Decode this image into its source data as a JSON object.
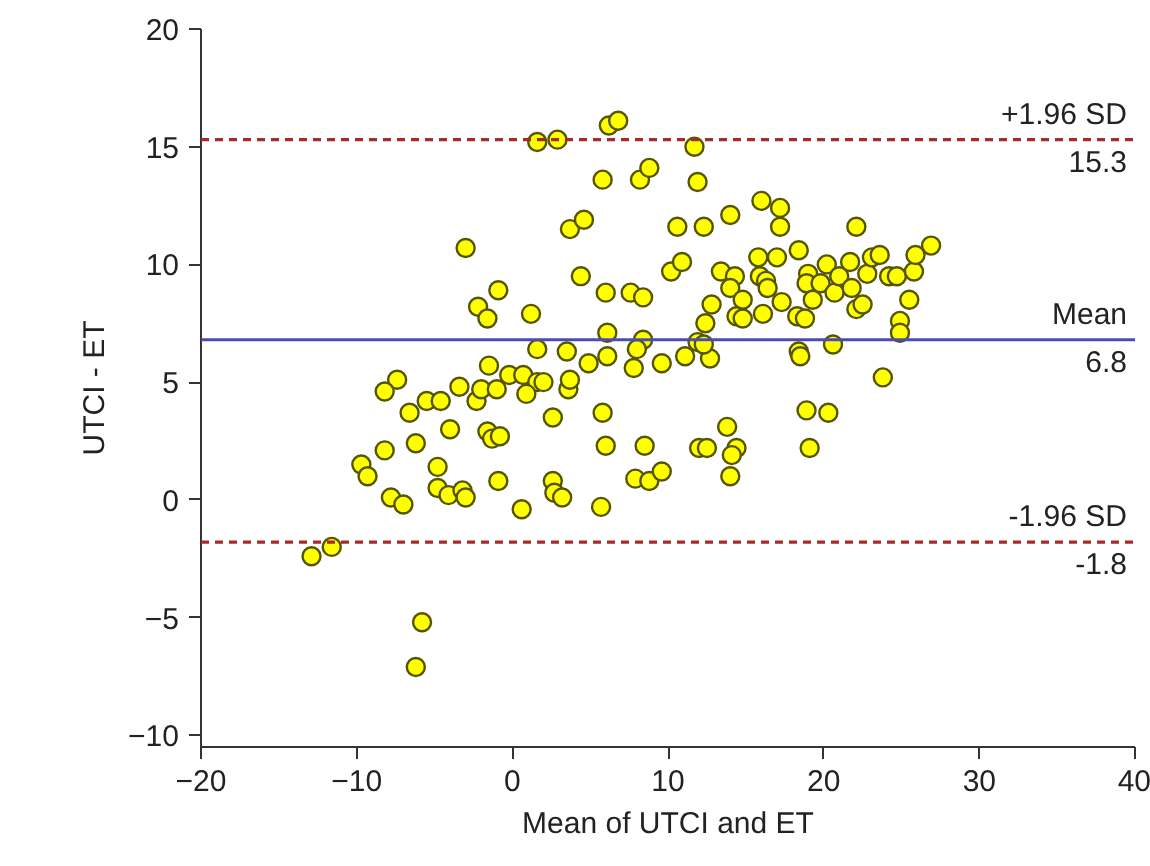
{
  "chart_data": {
    "type": "scatter",
    "xlabel": "Mean of UTCI and ET",
    "ylabel": "UTCI - ET",
    "xlim": [
      -20,
      40
    ],
    "xticks": [
      -20,
      -10,
      0,
      10,
      20,
      30,
      40
    ],
    "ylim": [
      -10.5,
      20
    ],
    "yticks": [
      -10,
      -5,
      0,
      5,
      10,
      15,
      20
    ],
    "marker": "circle",
    "series": [
      {
        "color": "#ffff00",
        "x": [
          1.6,
          2.9,
          6.2,
          6.8,
          5.8,
          8.2,
          8.8,
          -3.0,
          3.7,
          4.6,
          4.4,
          -0.9,
          -2.2,
          -1.6,
          1.2,
          6.0,
          7.6,
          8.4,
          10.2,
          6.1,
          8.4,
          1.6,
          3.5,
          -1.5,
          4.9,
          6.1,
          8.0,
          9.6,
          10.6,
          11.7,
          11.9,
          12.3,
          14.0,
          16.0,
          17.2,
          17.2,
          22.1,
          10.9,
          13.4,
          14.3,
          15.8,
          17.0,
          18.4,
          15.9,
          16.3,
          16.4,
          14.0,
          14.8,
          12.8,
          12.4,
          14.4,
          14.8,
          16.1,
          17.3,
          18.3,
          18.8,
          19.0,
          18.9,
          19.3,
          19.8,
          20.2,
          20.7,
          21.0,
          21.7,
          21.8,
          22.1,
          22.5,
          22.8,
          23.1,
          23.6,
          24.2,
          24.7,
          25.5,
          25.8,
          25.9,
          26.9,
          24.9,
          24.9,
          11.9,
          20.6,
          18.4,
          18.5,
          11.1,
          12.7,
          12.3,
          -0.2,
          0.7,
          1.6,
          2.0,
          7.8,
          -7.4,
          -8.2,
          -6.6,
          -5.5,
          -4.6,
          -3.4,
          -2.3,
          -2.0,
          -1.0,
          0.9,
          3.6,
          3.7,
          2.6,
          5.8,
          -4.0,
          -1.6,
          -1.3,
          -0.8,
          -6.2,
          -8.2,
          6.0,
          8.5,
          -9.7,
          -9.3,
          -4.8,
          -4.8,
          -4.1,
          -3.2,
          -3.0,
          -0.9,
          2.6,
          2.7,
          3.2,
          7.9,
          8.8,
          9.6,
          -7.8,
          -7.0,
          0.6,
          5.7,
          -12.9,
          -11.6,
          -5.8,
          -6.2,
          23.8,
          18.9,
          20.3,
          13.8,
          12.0,
          12.5,
          14.4,
          14.1,
          14.0,
          19.1
        ],
        "values": [
          15.2,
          15.3,
          15.9,
          16.1,
          13.6,
          13.6,
          14.1,
          10.7,
          11.5,
          11.9,
          9.5,
          8.9,
          8.2,
          7.7,
          7.9,
          8.8,
          8.8,
          8.6,
          9.7,
          7.1,
          6.8,
          6.4,
          6.3,
          5.7,
          5.8,
          6.1,
          6.4,
          5.8,
          11.6,
          15.0,
          13.5,
          11.6,
          12.1,
          12.7,
          12.4,
          11.6,
          11.6,
          10.1,
          9.7,
          9.5,
          10.3,
          10.3,
          10.6,
          9.5,
          9.3,
          9.0,
          9.0,
          8.5,
          8.3,
          7.5,
          7.8,
          7.7,
          7.9,
          8.4,
          7.8,
          7.7,
          9.6,
          9.2,
          8.5,
          9.2,
          10.0,
          8.8,
          9.5,
          10.1,
          9.0,
          8.1,
          8.3,
          9.6,
          10.3,
          10.4,
          9.5,
          9.5,
          8.5,
          9.7,
          10.4,
          10.8,
          7.6,
          7.1,
          6.7,
          6.6,
          6.3,
          6.1,
          6.1,
          6.0,
          6.6,
          5.3,
          5.3,
          5.0,
          5.0,
          5.6,
          5.1,
          4.6,
          3.7,
          4.2,
          4.2,
          4.8,
          4.2,
          4.7,
          4.7,
          4.5,
          4.7,
          5.1,
          3.5,
          3.7,
          3.0,
          2.9,
          2.6,
          2.7,
          2.4,
          2.1,
          2.3,
          2.3,
          1.5,
          1.0,
          1.4,
          0.5,
          0.2,
          0.4,
          0.1,
          0.8,
          0.8,
          0.3,
          0.1,
          0.9,
          0.8,
          1.2,
          0.1,
          -0.2,
          -0.4,
          -0.3,
          -2.4,
          -2.0,
          -5.2,
          -7.1,
          5.2,
          3.8,
          3.7,
          3.1,
          2.2,
          2.2,
          2.2,
          1.9,
          1.0,
          2.2
        ]
      }
    ],
    "ref_lines": [
      {
        "axis": "y",
        "value": 15.3,
        "label": "+1.96 SD",
        "color": "#a52a2a",
        "line_style": "dashed"
      },
      {
        "axis": "y",
        "value": 6.8,
        "label": "Mean",
        "color": "#4b4bb4",
        "line_style": "solid"
      },
      {
        "axis": "y",
        "value": -1.8,
        "label": "-1.96 SD",
        "color": "#a52a2a",
        "line_style": "dashed"
      }
    ],
    "annotations": [
      {
        "text": "15.3",
        "y": 15.3
      },
      {
        "text": "6.8",
        "y": 6.8
      },
      {
        "text": "-1.8",
        "y": -1.8
      }
    ]
  }
}
